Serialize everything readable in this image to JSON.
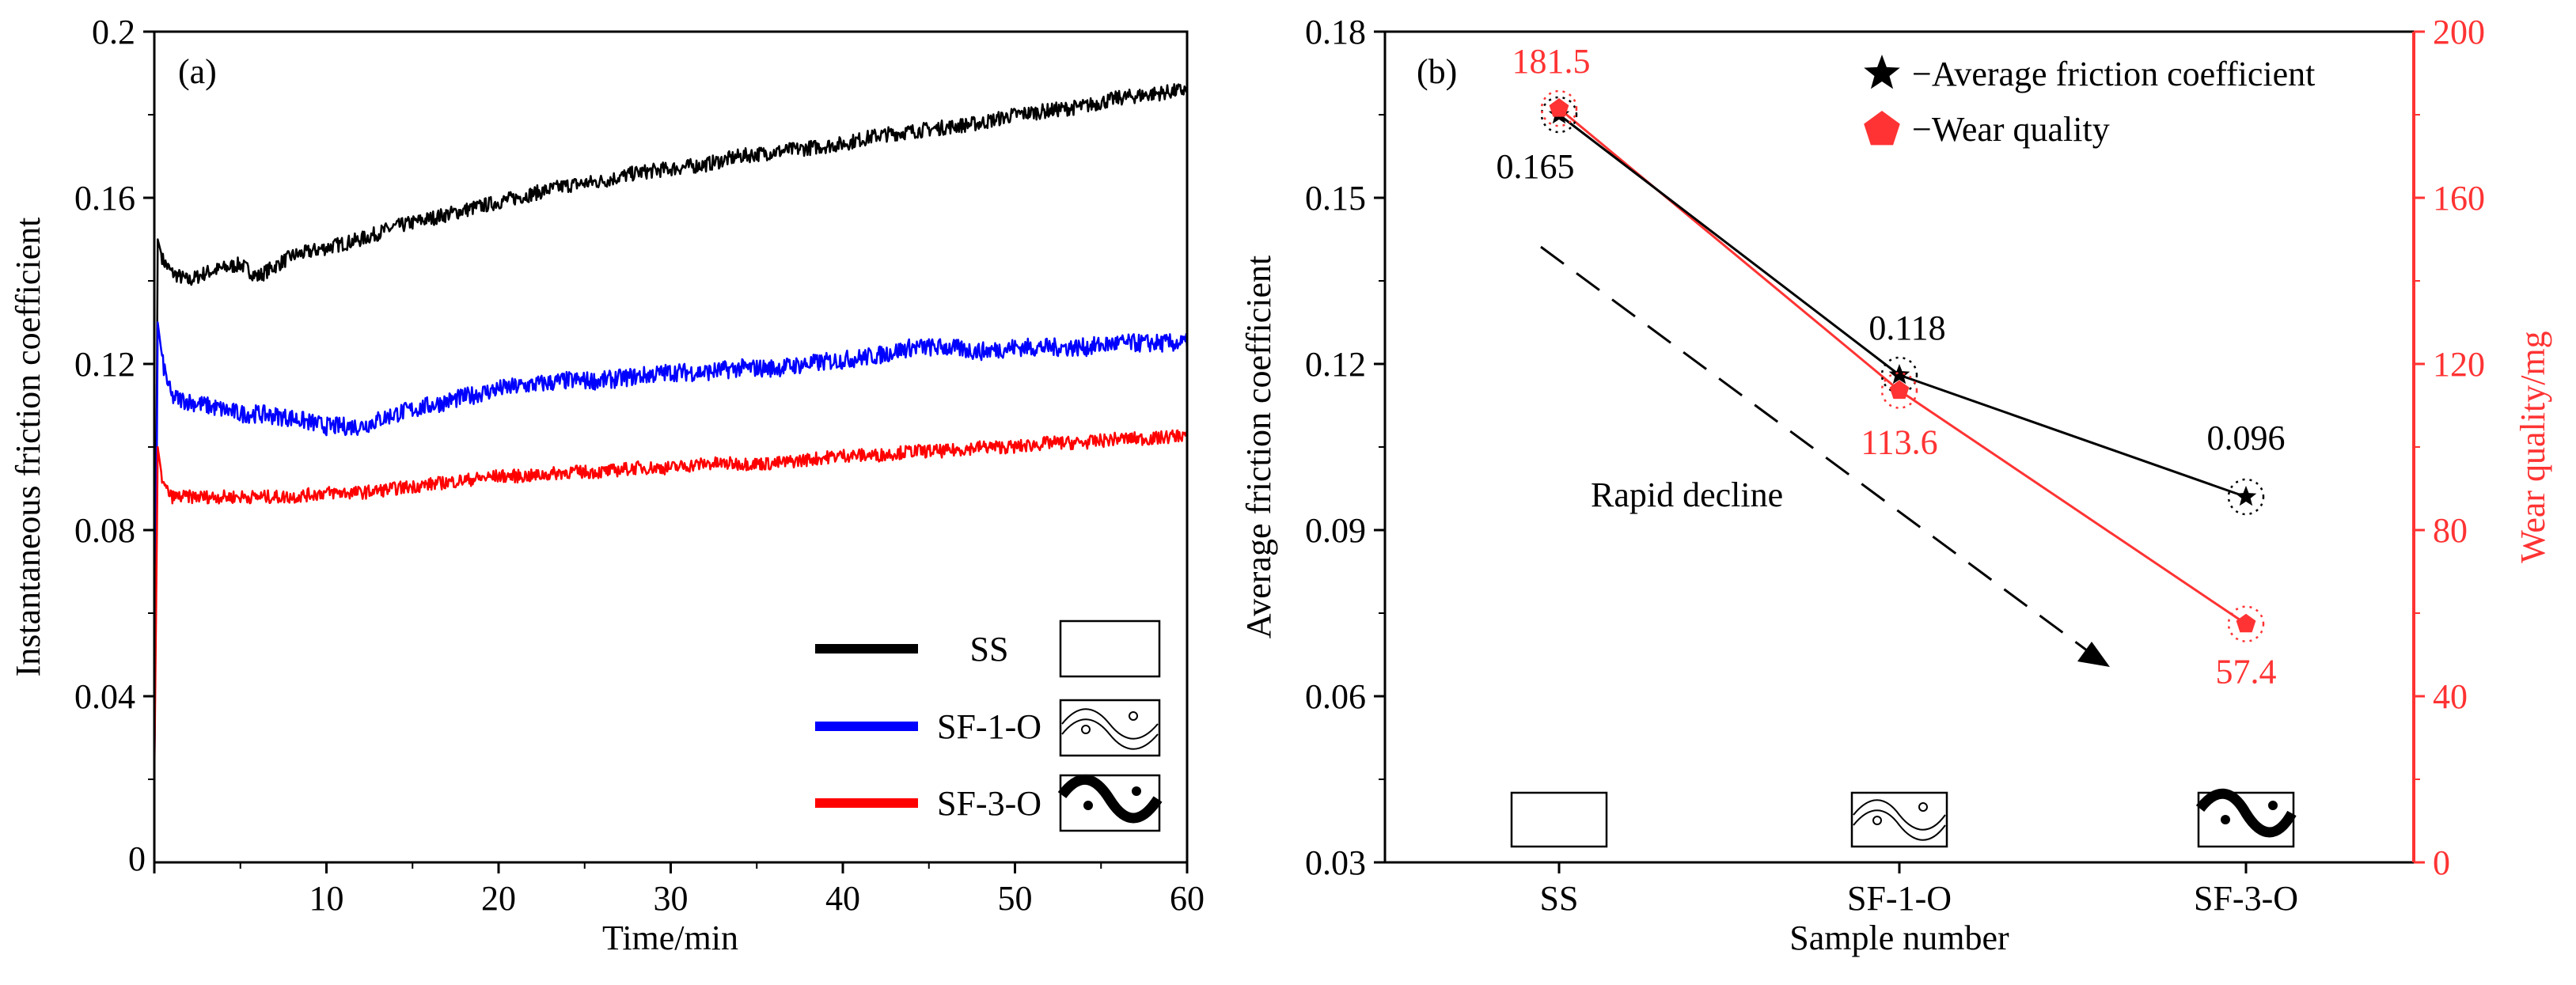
{
  "chart_data": [
    {
      "panel": "(a)",
      "type": "line",
      "xlabel": "Time/min",
      "ylabel": "Instantaneous friction coefficient",
      "xlim": [
        0,
        60
      ],
      "ylim": [
        0,
        0.2
      ],
      "xticks": [
        0,
        10,
        20,
        30,
        40,
        50,
        60
      ],
      "xtick_labels": [
        "0",
        "10",
        "20",
        "30",
        "40",
        "50",
        "60"
      ],
      "yticks": [
        0.04,
        0.08,
        0.12,
        0.16,
        0.2
      ],
      "ytick_labels": [
        "0.04",
        "0.08",
        "0.12",
        "0.16",
        "0.2"
      ],
      "legend_position": "bottom-right",
      "series": [
        {
          "name": "SS",
          "color": "#000000",
          "x": [
            0,
            0.2,
            0.5,
            1,
            2,
            3,
            4,
            5,
            6,
            8,
            10,
            12,
            14,
            16,
            18,
            20,
            22,
            24,
            26,
            28,
            30,
            32,
            34,
            36,
            38,
            40,
            42,
            44,
            46,
            48,
            50,
            52,
            54,
            56,
            58,
            60
          ],
          "y": [
            0.02,
            0.15,
            0.145,
            0.142,
            0.14,
            0.142,
            0.143,
            0.144,
            0.141,
            0.146,
            0.148,
            0.15,
            0.153,
            0.155,
            0.157,
            0.159,
            0.161,
            0.163,
            0.164,
            0.166,
            0.167,
            0.168,
            0.17,
            0.171,
            0.172,
            0.173,
            0.175,
            0.176,
            0.177,
            0.178,
            0.18,
            0.181,
            0.182,
            0.184,
            0.185,
            0.186
          ],
          "noise": 0.0018
        },
        {
          "name": "SF-1-O",
          "color": "#0000ff",
          "x": [
            0,
            0.2,
            0.5,
            1,
            2,
            3,
            4,
            5,
            6,
            8,
            10,
            12,
            14,
            16,
            18,
            20,
            22,
            24,
            26,
            28,
            30,
            32,
            34,
            36,
            38,
            40,
            42,
            44,
            46,
            48,
            50,
            52,
            54,
            56,
            58,
            60
          ],
          "y": [
            0.02,
            0.13,
            0.12,
            0.112,
            0.111,
            0.11,
            0.109,
            0.108,
            0.108,
            0.107,
            0.105,
            0.105,
            0.108,
            0.11,
            0.112,
            0.114,
            0.115,
            0.116,
            0.116,
            0.117,
            0.118,
            0.118,
            0.119,
            0.119,
            0.12,
            0.121,
            0.122,
            0.124,
            0.124,
            0.123,
            0.124,
            0.124,
            0.124,
            0.125,
            0.125,
            0.125
          ],
          "noise": 0.0022
        },
        {
          "name": "SF-3-O",
          "color": "#ff0000",
          "x": [
            0,
            0.2,
            0.5,
            1,
            2,
            3,
            4,
            5,
            6,
            8,
            10,
            12,
            14,
            16,
            18,
            20,
            22,
            24,
            26,
            28,
            30,
            32,
            34,
            36,
            38,
            40,
            42,
            44,
            46,
            48,
            50,
            52,
            54,
            56,
            58,
            60
          ],
          "y": [
            0.02,
            0.1,
            0.091,
            0.088,
            0.088,
            0.088,
            0.088,
            0.088,
            0.088,
            0.088,
            0.089,
            0.089,
            0.09,
            0.091,
            0.092,
            0.093,
            0.093,
            0.094,
            0.094,
            0.095,
            0.095,
            0.096,
            0.096,
            0.096,
            0.097,
            0.098,
            0.098,
            0.099,
            0.099,
            0.1,
            0.1,
            0.101,
            0.101,
            0.102,
            0.102,
            0.103
          ],
          "noise": 0.0016
        }
      ]
    },
    {
      "panel": "(b)",
      "type": "line",
      "categories": [
        "SS",
        "SF-1-O",
        "SF-3-O"
      ],
      "xlabel": "Sample number",
      "ylabel": "Average friction coefficient",
      "ylim": [
        0.03,
        0.18
      ],
      "yticks": [
        0.03,
        0.06,
        0.09,
        0.12,
        0.15,
        0.18
      ],
      "ytick_labels": [
        "0.03",
        "0.06",
        "0.09",
        "0.12",
        "0.15",
        "0.18"
      ],
      "y2label": "Wear quality/mg",
      "y2lim": [
        0,
        200
      ],
      "y2ticks": [
        0,
        40,
        80,
        120,
        160,
        200
      ],
      "y2tick_labels": [
        "0",
        "40",
        "80",
        "120",
        "160",
        "200"
      ],
      "legend_position": "top-right",
      "series": [
        {
          "name": "Average friction coefficient",
          "legend_text": "−Average friction coefficient",
          "axis": "left",
          "marker": "star",
          "color": "#000000",
          "values": [
            0.165,
            0.118,
            0.096
          ],
          "labels": [
            "0.165",
            "0.118",
            "0.096"
          ]
        },
        {
          "name": "Wear quality",
          "legend_text": "−Wear quality",
          "axis": "right",
          "marker": "pentagon",
          "color": "#ff3333",
          "values": [
            181.5,
            113.6,
            57.4
          ],
          "labels": [
            "181.5",
            "113.6",
            "57.4"
          ]
        }
      ],
      "annotations": [
        {
          "text": "Rapid decline",
          "type": "dashed-arrow"
        }
      ]
    }
  ]
}
